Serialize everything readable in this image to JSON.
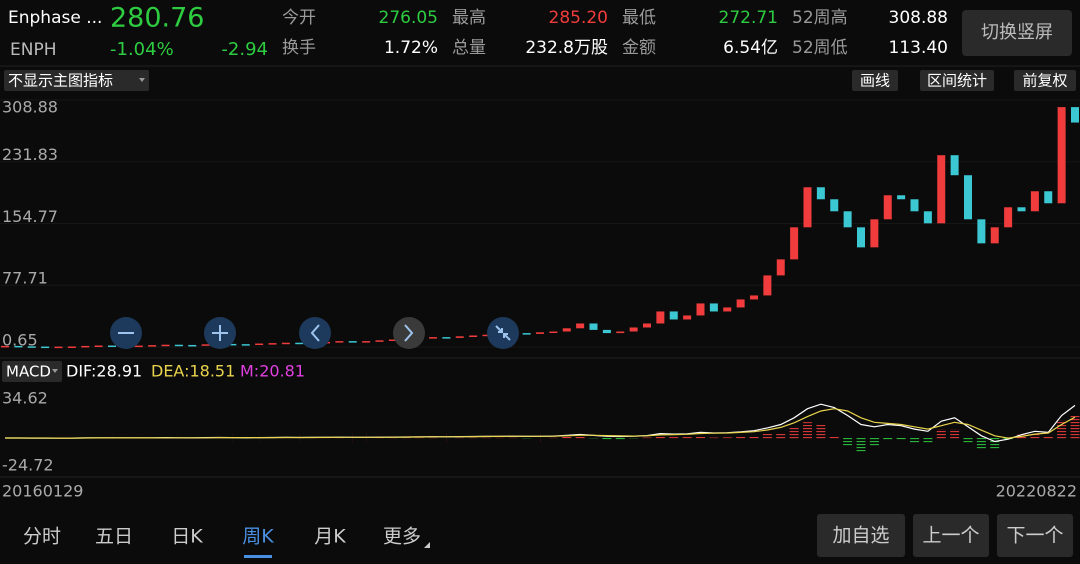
{
  "quote": {
    "name": "Enphase ...",
    "price": "280.76",
    "symbol": "ENPH",
    "change_pct": "-1.04%",
    "change": "-2.94",
    "stats": [
      {
        "label": "今开",
        "value": "276.05",
        "color": "#2ecc40"
      },
      {
        "label": "最高",
        "value": "285.20",
        "color": "#f03c3c"
      },
      {
        "label": "最低",
        "value": "272.71",
        "color": "#2ecc40"
      },
      {
        "label": "52周高",
        "value": "308.88",
        "color": "#ffffff"
      },
      {
        "label": "换手",
        "value": "1.72%",
        "color": "#ffffff"
      },
      {
        "label": "总量",
        "value": "232.8万股",
        "color": "#ffffff"
      },
      {
        "label": "金额",
        "value": "6.54亿",
        "color": "#ffffff"
      },
      {
        "label": "52周低",
        "value": "113.40",
        "color": "#ffffff"
      }
    ]
  },
  "toggle_button": "切换竖屏",
  "toolbar": {
    "indicator": "不显示主图指标",
    "tools": [
      "画线",
      "区间统计",
      "前复权"
    ]
  },
  "chart_data": {
    "type": "candlestick",
    "close": [
      2,
      1.5,
      1.2,
      1,
      1.1,
      1.3,
      2,
      2.5,
      2.2,
      2,
      2.4,
      3,
      3.5,
      3.2,
      3,
      4,
      4.5,
      4.2,
      4,
      5,
      5.5,
      6,
      5.5,
      6.5,
      7,
      8,
      7.5,
      8,
      9,
      10,
      11,
      12,
      13,
      12,
      14,
      15,
      16,
      17,
      18,
      17,
      19,
      20,
      24,
      30,
      22,
      18,
      20,
      25,
      30,
      45,
      35,
      40,
      55,
      45,
      50,
      60,
      65,
      90,
      110,
      150,
      200,
      185,
      170,
      150,
      125,
      160,
      190,
      185,
      170,
      155,
      240,
      215,
      160,
      130,
      150,
      175,
      170,
      195,
      180,
      300,
      280.76
    ],
    "ylim": [
      0.65,
      308.88
    ],
    "yticks": [
      308.88,
      231.83,
      154.77,
      77.71,
      0.65
    ],
    "up_color": "#f03c3c",
    "down_color": "#3cc8d2",
    "x_labels": [
      "20160129",
      "20220822"
    ],
    "macd": {
      "label": "MACD",
      "dif_label": "DIF:28.91",
      "dea_label": "DEA:18.51",
      "m_label": "M:20.81",
      "dif_color": "#ffffff",
      "dea_color": "#e8d44d",
      "m_color": "#e040e0",
      "dif": [
        0.1,
        0.1,
        0,
        0,
        0,
        0,
        0.2,
        0.3,
        0.2,
        0.2,
        0.2,
        0.3,
        0.4,
        0.3,
        0.2,
        0.4,
        0.5,
        0.4,
        0.3,
        0.4,
        0.5,
        0.6,
        0.5,
        0.6,
        0.7,
        0.8,
        0.7,
        0.7,
        0.8,
        0.9,
        1,
        1.1,
        1.2,
        1.1,
        1.3,
        1.4,
        1.5,
        1.6,
        1.7,
        1.5,
        1.6,
        1.8,
        2.5,
        3.2,
        2.4,
        1.6,
        1.4,
        1.7,
        2.2,
        4,
        3.5,
        3.8,
        5,
        4.5,
        4.8,
        5.5,
        6.5,
        9,
        12,
        18,
        26,
        30,
        27,
        20,
        12,
        10,
        12,
        11,
        8,
        6,
        15,
        18,
        10,
        2,
        -3,
        -1,
        3,
        6,
        5,
        20,
        28.91
      ],
      "dea": [
        0.1,
        0.1,
        0.1,
        0.1,
        0,
        0,
        0.1,
        0.2,
        0.2,
        0.2,
        0.2,
        0.2,
        0.3,
        0.3,
        0.3,
        0.3,
        0.4,
        0.4,
        0.4,
        0.4,
        0.4,
        0.5,
        0.5,
        0.5,
        0.6,
        0.7,
        0.7,
        0.7,
        0.7,
        0.8,
        0.9,
        1,
        1.1,
        1.1,
        1.2,
        1.3,
        1.4,
        1.5,
        1.6,
        1.6,
        1.6,
        1.7,
        2,
        2.5,
        2.5,
        2.2,
        1.9,
        1.8,
        2,
        2.8,
        3.1,
        3.4,
        4.1,
        4.3,
        4.5,
        5,
        5.7,
        7.2,
        9.5,
        13.5,
        19,
        24,
        26,
        24,
        18,
        14,
        13,
        12,
        10,
        8,
        11,
        14,
        12,
        7,
        2,
        0,
        1.5,
        3.5,
        4.5,
        12,
        18.51
      ],
      "hist": [
        0,
        0,
        -0.2,
        -0.2,
        0,
        0,
        0.2,
        0.2,
        0,
        0,
        0,
        0.2,
        0.2,
        0,
        -0.2,
        0.2,
        0.2,
        0,
        -0.2,
        0,
        0.2,
        0.2,
        0,
        0.2,
        0.2,
        0.2,
        0,
        0,
        0.2,
        0.2,
        0.2,
        0.2,
        0.2,
        0,
        0.2,
        0.2,
        0.2,
        0.2,
        0.2,
        -0.2,
        0,
        0.2,
        1,
        1.4,
        -0.2,
        -1.2,
        -1,
        -0.2,
        0.4,
        2.4,
        0.8,
        0.8,
        1.8,
        0.4,
        0.6,
        1,
        1.6,
        3.6,
        5,
        9,
        14,
        12,
        2,
        -8,
        -12,
        -8,
        -2,
        -2,
        -4,
        -4,
        8,
        8,
        -4,
        -10,
        -10,
        -2,
        3,
        5,
        1,
        16,
        20.81
      ],
      "ylim": [
        -24.72,
        34.62
      ],
      "yticks": [
        34.62,
        -24.72
      ]
    }
  },
  "tabs": [
    "分时",
    "五日",
    "日K",
    "周K",
    "月K",
    "更多"
  ],
  "active_tab": 3,
  "buttons": [
    "加自选",
    "上一个",
    "下一个"
  ]
}
